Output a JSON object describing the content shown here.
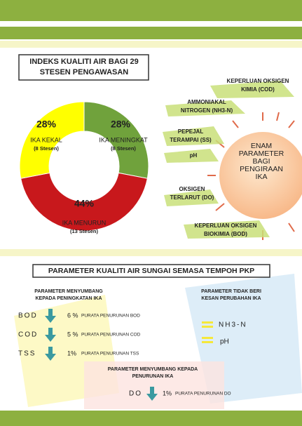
{
  "chart_data": {
    "type": "pie",
    "title": [
      "INDEKS KUALITI AIR BAGI 29",
      "STESEN PENGAWASAN"
    ],
    "categories": [
      "IKA MENINGKAT",
      "IKA MENURUN",
      "IKA KEKAL"
    ],
    "values": [
      28,
      44,
      28
    ],
    "value_labels": [
      "28%",
      "44%",
      "28%"
    ],
    "notes": [
      "(8 Stesen)",
      "(13 Stesen)",
      "(8 Stesen)"
    ],
    "colors": [
      "#70a23c",
      "#c8181c",
      "#ffff00"
    ]
  },
  "sun": {
    "label": [
      "ENAM",
      "PARAMETER",
      "BAGI",
      "PENGIRAAN",
      "IKA"
    ],
    "parameters": [
      [
        "KEPERLUAN OKSIGEN",
        "KIMIA (COD)"
      ],
      [
        "AMMONIAKAL",
        "NITROGEN (NH3-N)"
      ],
      [
        "PEPEJAL",
        "TERAMPAI (SS)"
      ],
      [
        "pH"
      ],
      [
        "OKSIGEN",
        "TERLARUT (DO)"
      ],
      [
        "KEPERLUAN OKSIGEN",
        "BIOKIMIA (BOD)"
      ]
    ]
  },
  "section": {
    "title": "PARAMETER KUALITI AIR SUNGAI SEMASA TEMPOH PKP",
    "increase": {
      "heading": [
        "PARAMETER MENYUMBANG",
        "KEPADA PENINGKATAN IKA"
      ],
      "rows": [
        [
          "BOD",
          "6 %",
          "PURATA PENURUNAN BOD"
        ],
        [
          "COD",
          "5 %",
          "PURATA PENURUNAN COD"
        ],
        [
          "TSS",
          "1%",
          "PURATA PENURUNAN TSS"
        ]
      ]
    },
    "no_effect": {
      "heading": [
        "PARAMETER TIDAK  BERI",
        "KESAN PERUBAHAN IKA"
      ],
      "items": [
        "NH3-N",
        "pH"
      ]
    },
    "decrease": {
      "heading": [
        "PARAMETER MENYUMBANG KEPADA",
        "PENURUNAN IKA"
      ],
      "rows": [
        [
          "DO",
          "1%",
          "PURATA PENURUNAN DO"
        ]
      ]
    }
  }
}
